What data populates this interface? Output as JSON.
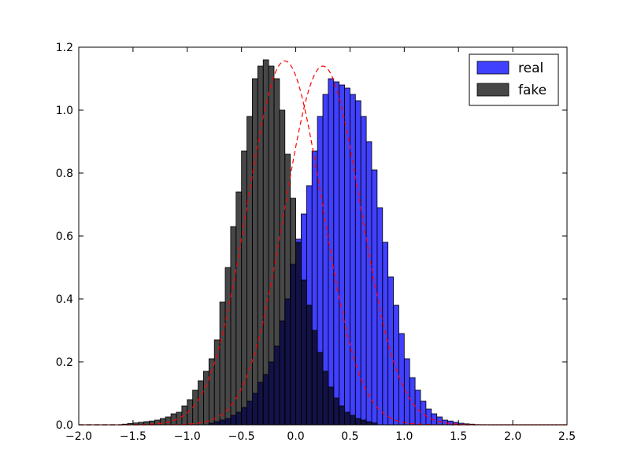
{
  "chart_data": {
    "type": "histogram",
    "title": "",
    "xlabel": "",
    "ylabel": "",
    "xlim": [
      -2.0,
      2.5
    ],
    "ylim": [
      0.0,
      1.2
    ],
    "xticks": [
      "−2.0",
      "−1.5",
      "−1.0",
      "−0.5",
      "0.0",
      "0.5",
      "1.0",
      "1.5",
      "2.0",
      "2.5"
    ],
    "yticks": [
      "0.0",
      "0.2",
      "0.4",
      "0.6",
      "0.8",
      "1.0",
      "1.2"
    ],
    "xtick_values": [
      -2.0,
      -1.5,
      -1.0,
      -0.5,
      0.0,
      0.5,
      1.0,
      1.5,
      2.0,
      2.5
    ],
    "ytick_values": [
      0.0,
      0.2,
      0.4,
      0.6,
      0.8,
      1.0,
      1.2
    ],
    "grid": false,
    "legend_position": "top-right",
    "series": [
      {
        "name": "real",
        "kind": "bars",
        "color": "#0000ff",
        "opacity": 0.75,
        "bin_width": 0.05,
        "bin_edges_start": -0.8,
        "values": [
          0.005,
          0.01,
          0.015,
          0.02,
          0.03,
          0.04,
          0.055,
          0.075,
          0.1,
          0.135,
          0.16,
          0.2,
          0.25,
          0.33,
          0.4,
          0.51,
          0.59,
          0.67,
          0.76,
          0.87,
          0.98,
          1.05,
          1.1,
          1.09,
          1.08,
          1.07,
          1.05,
          1.03,
          0.98,
          0.9,
          0.81,
          0.69,
          0.58,
          0.47,
          0.38,
          0.29,
          0.21,
          0.15,
          0.11,
          0.075,
          0.05,
          0.035,
          0.025,
          0.015,
          0.012,
          0.008,
          0.005,
          0.003,
          0.002
        ]
      },
      {
        "name": "fake",
        "kind": "bars",
        "color": "#000000",
        "opacity": 0.72,
        "bin_width": 0.05,
        "bin_edges_start": -1.6,
        "values": [
          0.002,
          0.004,
          0.006,
          0.008,
          0.01,
          0.012,
          0.015,
          0.02,
          0.025,
          0.035,
          0.04,
          0.06,
          0.08,
          0.11,
          0.14,
          0.17,
          0.21,
          0.27,
          0.39,
          0.5,
          0.63,
          0.74,
          0.87,
          0.98,
          1.1,
          1.14,
          1.16,
          1.14,
          1.1,
          1.0,
          0.86,
          0.72,
          0.58,
          0.46,
          0.38,
          0.3,
          0.23,
          0.17,
          0.12,
          0.085,
          0.06,
          0.04,
          0.03,
          0.02,
          0.015,
          0.01,
          0.006
        ]
      },
      {
        "name": "",
        "kind": "pdf",
        "style": "dashed",
        "color": "#ff0000",
        "mean": 0.25,
        "std": 0.35
      },
      {
        "name": "",
        "kind": "pdf",
        "style": "dashed",
        "color": "#ff0000",
        "mean": -0.1,
        "std": 0.345
      }
    ],
    "legend": [
      {
        "label": "real",
        "color": "#0000ff"
      },
      {
        "label": "fake",
        "color": "#000000"
      }
    ]
  }
}
